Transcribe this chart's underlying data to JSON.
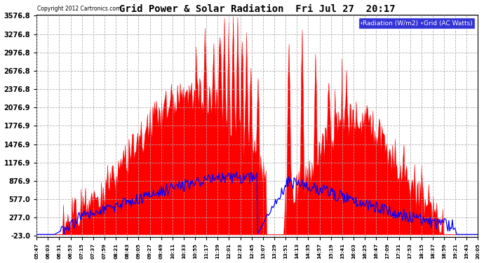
{
  "title": "Grid Power & Solar Radiation  Fri Jul 27  20:17",
  "copyright": "Copyright 2012 Cartronics.com",
  "legend_radiation": "Radiation (W/m2)",
  "legend_grid": "Grid (AC Watts)",
  "background_color": "#ffffff",
  "plot_bg_color": "#ffffff",
  "grid_color": "#aaaaaa",
  "y_ticks": [
    3576.8,
    3276.8,
    2976.8,
    2676.8,
    2376.8,
    2076.9,
    1776.9,
    1476.9,
    1176.9,
    876.9,
    577.0,
    277.0,
    -23.0
  ],
  "y_min": -23.0,
  "y_max": 3576.8,
  "radiation_color": "#0000ff",
  "grid_ac_color": "#ff0000",
  "legend_radiation_bg": "#0000cc",
  "legend_grid_bg": "#cc0000",
  "n_points": 500
}
